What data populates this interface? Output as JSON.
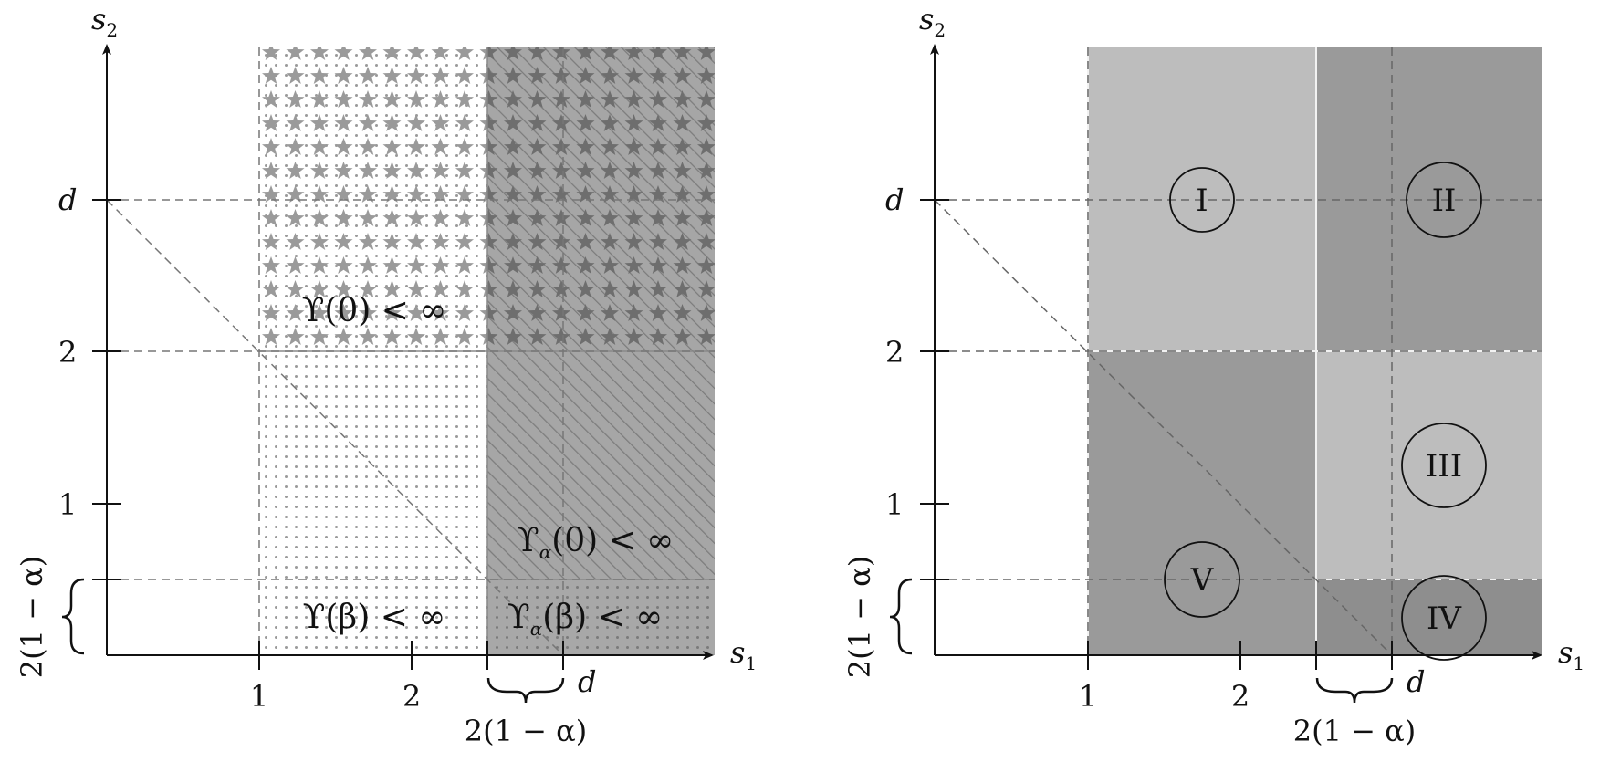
{
  "colors": {
    "light_gray": "#bdbdbd",
    "mid_gray": "#9a9a9a",
    "dark_gray": "#8e8e8e",
    "hatch_gray": "#a6a6a6",
    "dashed": "#777777"
  },
  "left_panel": {
    "x_axis_label": "s",
    "x_axis_sub": "1",
    "y_axis_label": "s",
    "y_axis_sub": "2",
    "x_ticks": [
      "1",
      "2"
    ],
    "x_d_label": "d",
    "x_brace_label": "2(1 − α)",
    "y_ticks": [
      "1",
      "2"
    ],
    "y_d_label": "d",
    "y_brace_label": "2(1 − α)",
    "regions": {
      "upsilon_zero": "ϒ(0) < ∞",
      "upsilon_beta": "ϒ(β) < ∞",
      "upsilon_alpha_zero_pre": "ϒ",
      "upsilon_alpha_zero_sub": "α",
      "upsilon_alpha_zero_post": "(0) < ∞",
      "upsilon_alpha_beta_pre": "ϒ",
      "upsilon_alpha_beta_sub": "α",
      "upsilon_alpha_beta_post": "(β) < ∞"
    }
  },
  "right_panel": {
    "x_axis_label": "s",
    "x_axis_sub": "1",
    "y_axis_label": "s",
    "y_axis_sub": "2",
    "x_ticks": [
      "1",
      "2"
    ],
    "x_d_label": "d",
    "x_brace_label": "2(1 − α)",
    "y_ticks": [
      "1",
      "2"
    ],
    "y_d_label": "d",
    "y_brace_label": "2(1 − α)",
    "region_labels": [
      "I",
      "II",
      "III",
      "IV",
      "V"
    ]
  }
}
